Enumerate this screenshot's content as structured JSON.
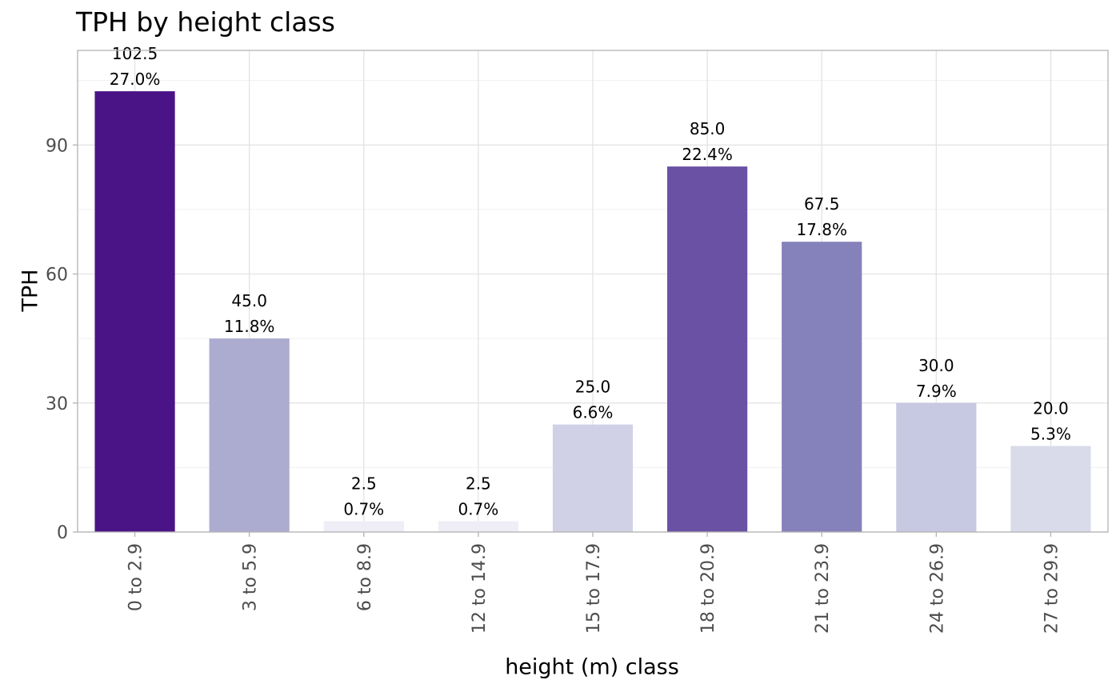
{
  "chart_data": {
    "type": "bar",
    "title": "TPH by height class",
    "xlabel": "height (m) class",
    "ylabel": "TPH",
    "ylim": [
      0,
      112
    ],
    "yticks": [
      0,
      30,
      60,
      90
    ],
    "categories": [
      "0 to 2.9",
      "3 to 5.9",
      "6 to 8.9",
      "12 to 14.9",
      "15 to 17.9",
      "18 to 20.9",
      "21 to 23.9",
      "24 to 26.9",
      "27 to 29.9"
    ],
    "values": [
      102.5,
      45.0,
      2.5,
      2.5,
      25.0,
      85.0,
      67.5,
      30.0,
      20.0
    ],
    "value_labels": [
      "102.5",
      "45.0",
      "2.5",
      "2.5",
      "25.0",
      "85.0",
      "67.5",
      "30.0",
      "20.0"
    ],
    "percent_labels": [
      "27.0%",
      "11.8%",
      "0.7%",
      "0.7%",
      "6.6%",
      "22.4%",
      "17.8%",
      "7.9%",
      "5.3%"
    ],
    "bar_colors": [
      "#4a1486",
      "#abaccf",
      "#efedf5",
      "#efedf5",
      "#d0d1e6",
      "#6a51a3",
      "#8581bb",
      "#c7c8e2",
      "#d9dbeb"
    ],
    "grid": true,
    "legend": "none"
  }
}
